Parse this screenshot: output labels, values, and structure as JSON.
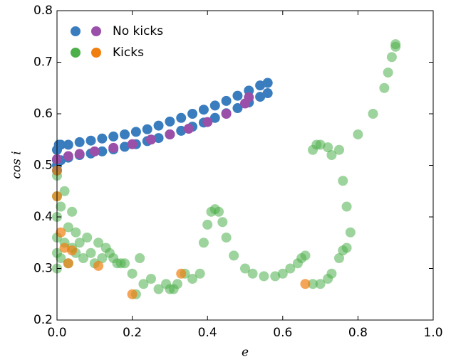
{
  "chart_data": {
    "type": "scatter",
    "xlabel": "e",
    "ylabel": "cos i",
    "xlim": [
      0,
      1
    ],
    "ylim": [
      0.2,
      0.8
    ],
    "xticks": [
      {
        "value": 0,
        "label": "0.0"
      },
      0.2,
      0.4,
      0.6,
      0.8,
      {
        "value": 1,
        "label": "1.0"
      }
    ],
    "yticks": [
      0.2,
      0.3,
      0.4,
      0.5,
      0.6,
      0.7,
      0.8
    ],
    "legend_position": "upper left",
    "series": [
      {
        "name": "No kicks",
        "groups": [
          {
            "color": "#3a7dbf",
            "opacity": 1,
            "x": [
              0,
              0,
              0,
              0,
              0.005,
              0.01,
              0.03,
              0.06,
              0.09,
              0.12,
              0.15,
              0.18,
              0.21,
              0.24,
              0.27,
              0.3,
              0.33,
              0.36,
              0.39,
              0.42,
              0.45,
              0.48,
              0.51,
              0.54,
              0.56,
              0.01,
              0.03,
              0.06,
              0.09,
              0.12,
              0.15,
              0.18,
              0.21,
              0.24,
              0.27,
              0.3,
              0.33,
              0.36,
              0.39,
              0.42,
              0.45,
              0.48,
              0.51,
              0.54,
              0.56
            ],
            "values": [
              0.49,
              0.5,
              0.51,
              0.53,
              0.54,
              0.54,
              0.54,
              0.545,
              0.548,
              0.552,
              0.556,
              0.56,
              0.565,
              0.57,
              0.577,
              0.585,
              0.592,
              0.6,
              0.608,
              0.616,
              0.625,
              0.635,
              0.645,
              0.655,
              0.66,
              0.51,
              0.515,
              0.52,
              0.523,
              0.527,
              0.531,
              0.536,
              0.541,
              0.547,
              0.553,
              0.56,
              0.567,
              0.575,
              0.583,
              0.592,
              0.601,
              0.611,
              0.622,
              0.633,
              0.64
            ]
          },
          {
            "color": "#9a4fa8",
            "opacity": 1,
            "x": [
              0.0,
              0.03,
              0.06,
              0.1,
              0.15,
              0.2,
              0.25,
              0.3,
              0.35,
              0.4,
              0.45,
              0.5,
              0.51
            ],
            "values": [
              0.512,
              0.518,
              0.522,
              0.527,
              0.534,
              0.541,
              0.55,
              0.56,
              0.571,
              0.584,
              0.6,
              0.62,
              0.632
            ]
          }
        ]
      },
      {
        "name": "Kicks",
        "groups": [
          {
            "color": "#4daf4a",
            "opacity": 0.55,
            "x": [
              0,
              0,
              0,
              0,
              0,
              0,
              0.01,
              0.01,
              0.02,
              0.02,
              0.03,
              0.03,
              0.04,
              0.04,
              0.05,
              0.05,
              0.06,
              0.07,
              0.08,
              0.09,
              0.1,
              0.11,
              0.12,
              0.13,
              0.14,
              0.15,
              0.16,
              0.17,
              0.18,
              0.2,
              0.21,
              0.22,
              0.23,
              0.25,
              0.27,
              0.29,
              0.3,
              0.31,
              0.32,
              0.34,
              0.36,
              0.38,
              0.39,
              0.4,
              0.41,
              0.42,
              0.43,
              0.44,
              0.45,
              0.47,
              0.5,
              0.52,
              0.55,
              0.58,
              0.6,
              0.62,
              0.64,
              0.65,
              0.66,
              0.68,
              0.7,
              0.72,
              0.73,
              0.75,
              0.76,
              0.77,
              0.78,
              0.77,
              0.76,
              0.75,
              0.73,
              0.72,
              0.7,
              0.69,
              0.68,
              0.8,
              0.84,
              0.87,
              0.88,
              0.89,
              0.9,
              0.9
            ],
            "values": [
              0.3,
              0.33,
              0.36,
              0.4,
              0.44,
              0.48,
              0.32,
              0.42,
              0.35,
              0.45,
              0.31,
              0.38,
              0.34,
              0.41,
              0.33,
              0.37,
              0.35,
              0.32,
              0.36,
              0.33,
              0.31,
              0.35,
              0.32,
              0.34,
              0.33,
              0.32,
              0.31,
              0.31,
              0.31,
              0.29,
              0.25,
              0.32,
              0.27,
              0.28,
              0.26,
              0.27,
              0.26,
              0.26,
              0.27,
              0.29,
              0.28,
              0.29,
              0.35,
              0.385,
              0.41,
              0.415,
              0.41,
              0.39,
              0.36,
              0.325,
              0.3,
              0.29,
              0.285,
              0.285,
              0.29,
              0.3,
              0.31,
              0.32,
              0.325,
              0.27,
              0.27,
              0.28,
              0.29,
              0.32,
              0.335,
              0.34,
              0.37,
              0.42,
              0.47,
              0.53,
              0.52,
              0.535,
              0.54,
              0.54,
              0.53,
              0.56,
              0.6,
              0.65,
              0.68,
              0.71,
              0.73,
              0.735
            ]
          },
          {
            "color": "#f07f10",
            "opacity": 0.7,
            "x": [
              0.0,
              0.0,
              0.01,
              0.02,
              0.03,
              0.04,
              0.11,
              0.2,
              0.33,
              0.66
            ],
            "values": [
              0.49,
              0.44,
              0.37,
              0.34,
              0.31,
              0.335,
              0.305,
              0.25,
              0.29,
              0.27
            ]
          }
        ]
      }
    ]
  }
}
